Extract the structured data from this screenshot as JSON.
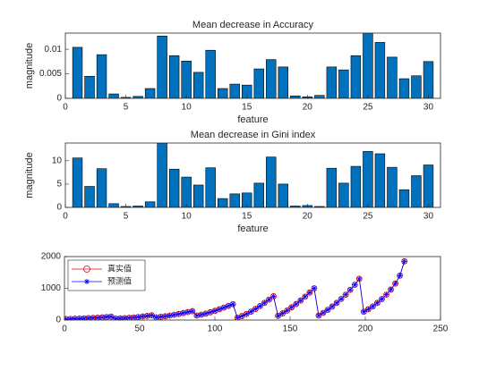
{
  "chart_data": [
    {
      "type": "bar",
      "title": "Mean decrease in Accuracy",
      "x_label": "feature",
      "y_label": "magnitude",
      "x": [
        1,
        2,
        3,
        4,
        5,
        6,
        7,
        8,
        9,
        10,
        11,
        12,
        13,
        14,
        15,
        16,
        17,
        18,
        19,
        20,
        21,
        22,
        23,
        24,
        25,
        26,
        27,
        28,
        29,
        30
      ],
      "values": [
        0.0104,
        0.0045,
        0.0089,
        0.0009,
        0.0002,
        0.0004,
        0.002,
        0.0127,
        0.0087,
        0.0076,
        0.0053,
        0.0098,
        0.002,
        0.0029,
        0.0027,
        0.006,
        0.0079,
        0.0064,
        0.0005,
        0.0003,
        0.0006,
        0.0064,
        0.0058,
        0.0087,
        0.0133,
        0.0114,
        0.0084,
        0.004,
        0.0046,
        0.0075
      ],
      "color": "#0072bd",
      "xlim": [
        0,
        31
      ],
      "xticks": [
        0,
        5,
        10,
        15,
        20,
        25,
        30
      ],
      "ylim": [
        0,
        0.0133
      ],
      "yticks": [
        0,
        0.005,
        0.01
      ]
    },
    {
      "type": "bar",
      "title": "Mean decrease in Gini index",
      "x_label": "feature",
      "y_label": "magnitude",
      "x": [
        1,
        2,
        3,
        4,
        5,
        6,
        7,
        8,
        9,
        10,
        11,
        12,
        13,
        14,
        15,
        16,
        17,
        18,
        19,
        20,
        21,
        22,
        23,
        24,
        25,
        26,
        27,
        28,
        29,
        30
      ],
      "values": [
        10.6,
        4.5,
        8.3,
        0.8,
        0.2,
        0.3,
        1.2,
        13.8,
        8.2,
        6.5,
        4.8,
        8.5,
        1.9,
        2.9,
        3.1,
        5.2,
        10.8,
        5.0,
        0.3,
        0.4,
        0.2,
        8.4,
        5.2,
        8.8,
        12.0,
        11.5,
        8.6,
        3.8,
        6.8,
        9.1
      ],
      "color": "#0072bd",
      "xlim": [
        0,
        31
      ],
      "xticks": [
        0,
        5,
        10,
        15,
        20,
        25,
        30
      ],
      "ylim": [
        0,
        13.8
      ],
      "yticks": [
        0,
        5,
        10
      ]
    },
    {
      "type": "line",
      "legend": "upper left",
      "x": [
        1,
        4,
        7,
        10,
        13,
        16,
        19,
        22,
        25,
        28,
        31,
        34,
        37,
        40,
        43,
        46,
        49,
        52,
        55,
        58,
        61,
        64,
        67,
        70,
        73,
        76,
        79,
        82,
        85,
        88,
        91,
        94,
        97,
        100,
        103,
        106,
        109,
        112,
        115,
        118,
        121,
        124,
        127,
        130,
        133,
        136,
        139,
        142,
        145,
        148,
        151,
        154,
        157,
        160,
        163,
        166,
        169,
        172,
        175,
        178,
        181,
        184,
        187,
        190,
        193,
        196,
        199,
        202,
        205,
        208,
        211,
        214,
        217,
        220,
        223,
        226
      ],
      "series": [
        {
          "name": "真实值",
          "color": "#e00000",
          "marker": "circle",
          "values": [
            30,
            35,
            40,
            46,
            52,
            59,
            66,
            74,
            83,
            95,
            110,
            45,
            52,
            60,
            70,
            82,
            96,
            112,
            130,
            150,
            85,
            100,
            118,
            140,
            165,
            192,
            220,
            250,
            280,
            140,
            170,
            205,
            245,
            290,
            340,
            390,
            445,
            500,
            70,
            125,
            190,
            265,
            350,
            440,
            540,
            645,
            750,
            130,
            210,
            300,
            400,
            505,
            615,
            735,
            865,
            1000,
            140,
            225,
            320,
            425,
            540,
            665,
            800,
            950,
            1110,
            1300,
            260,
            340,
            430,
            540,
            660,
            800,
            960,
            1150,
            1400,
            1850
          ]
        },
        {
          "name": "预测值",
          "color": "#0000ff",
          "marker": "star",
          "values": [
            30,
            35,
            40,
            46,
            52,
            59,
            66,
            74,
            83,
            95,
            110,
            45,
            52,
            60,
            70,
            82,
            96,
            112,
            130,
            150,
            85,
            100,
            118,
            140,
            165,
            192,
            220,
            250,
            280,
            140,
            170,
            205,
            245,
            290,
            340,
            390,
            445,
            500,
            70,
            125,
            190,
            265,
            350,
            440,
            540,
            645,
            750,
            130,
            210,
            300,
            400,
            505,
            615,
            735,
            865,
            1000,
            140,
            225,
            320,
            425,
            540,
            665,
            800,
            950,
            1110,
            1300,
            260,
            340,
            430,
            540,
            660,
            800,
            960,
            1150,
            1400,
            1850
          ]
        }
      ],
      "xlim": [
        0,
        250
      ],
      "xticks": [
        0,
        50,
        100,
        150,
        200,
        250
      ],
      "ylim": [
        0,
        2000
      ],
      "yticks": [
        0,
        1000,
        2000
      ]
    }
  ]
}
